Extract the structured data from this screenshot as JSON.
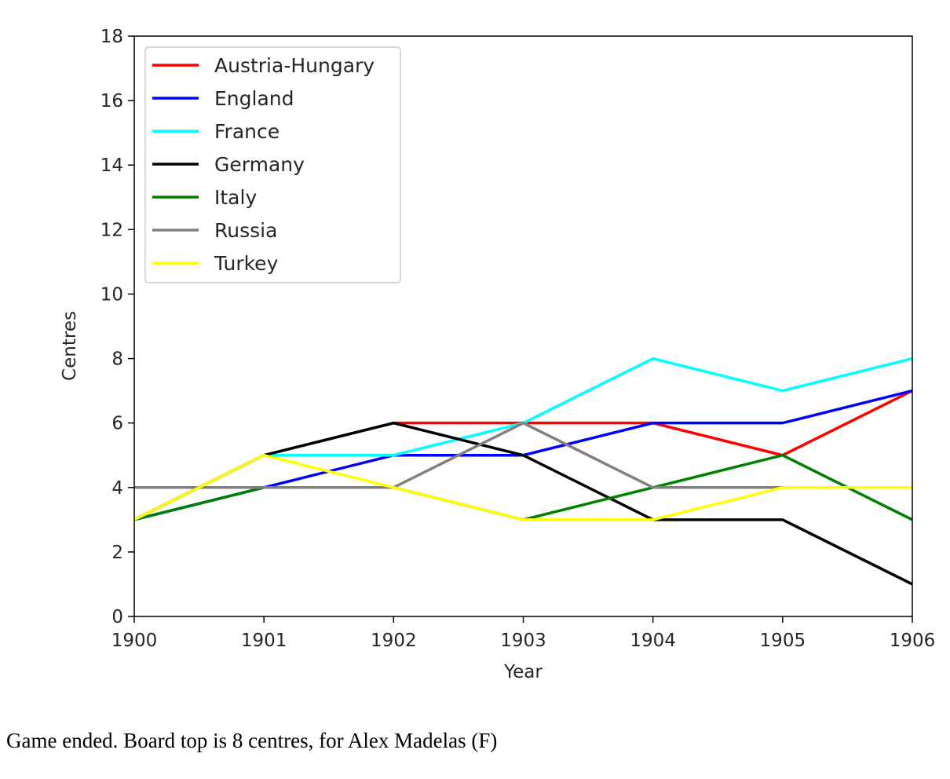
{
  "chart_data": {
    "type": "line",
    "title": "",
    "xlabel": "Year",
    "ylabel": "Centres",
    "x": [
      1900,
      1901,
      1902,
      1903,
      1904,
      1905,
      1906
    ],
    "xlim": [
      1900,
      1906
    ],
    "ylim": [
      0,
      18
    ],
    "xticks": [
      "1900",
      "1901",
      "1902",
      "1903",
      "1904",
      "1905",
      "1906"
    ],
    "yticks": [
      "0",
      "2",
      "4",
      "6",
      "8",
      "10",
      "12",
      "14",
      "16",
      "18"
    ],
    "grid": false,
    "legend_position": "top-left",
    "series": [
      {
        "name": "Austria-Hungary",
        "color": "#ff0000",
        "values": [
          3,
          5,
          6,
          6,
          6,
          5,
          7
        ]
      },
      {
        "name": "England",
        "color": "#0000ff",
        "values": [
          3,
          4,
          5,
          5,
          6,
          6,
          7
        ]
      },
      {
        "name": "France",
        "color": "#00ffff",
        "values": [
          3,
          5,
          5,
          6,
          8,
          7,
          8
        ]
      },
      {
        "name": "Germany",
        "color": "#000000",
        "values": [
          3,
          5,
          6,
          5,
          3,
          3,
          1
        ]
      },
      {
        "name": "Italy",
        "color": "#008000",
        "values": [
          3,
          4,
          4,
          3,
          4,
          5,
          3
        ]
      },
      {
        "name": "Russia",
        "color": "#808080",
        "values": [
          4,
          4,
          4,
          6,
          4,
          4,
          4
        ]
      },
      {
        "name": "Turkey",
        "color": "#ffff00",
        "values": [
          3,
          5,
          4,
          3,
          3,
          4,
          4
        ]
      }
    ]
  },
  "caption": "Game ended. Board top is 8 centres, for Alex Madelas (F)"
}
